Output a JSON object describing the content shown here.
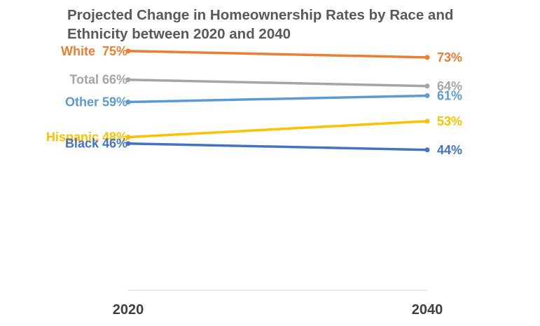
{
  "chart_data": {
    "type": "line",
    "title": "Projected Change in Homeownership Rates by Race and Ethnicity between 2020 and 2040",
    "x": [
      "2020",
      "2040"
    ],
    "ylim": [
      0,
      80
    ],
    "grid": false,
    "legend": "none (series labeled inline at line start)",
    "series": [
      {
        "name": "White",
        "values": [
          75,
          73
        ],
        "start_label": "White  75%",
        "end_label": "73%",
        "color": "#ED7D31"
      },
      {
        "name": "Total",
        "values": [
          66,
          64
        ],
        "start_label": "Total 66%",
        "end_label": "64%",
        "color": "#A5A5A5"
      },
      {
        "name": "Other",
        "values": [
          59,
          61
        ],
        "start_label": "Other 59%",
        "end_label": "61%",
        "color": "#5B9BD5"
      },
      {
        "name": "Hispanic",
        "values": [
          48,
          53
        ],
        "start_label": "Hispanic 48%",
        "end_label": "53%",
        "color": "#FFC000"
      },
      {
        "name": "Black",
        "values": [
          46,
          44
        ],
        "start_label": "Black 46%",
        "end_label": "44%",
        "color": "#4472C4"
      }
    ]
  }
}
